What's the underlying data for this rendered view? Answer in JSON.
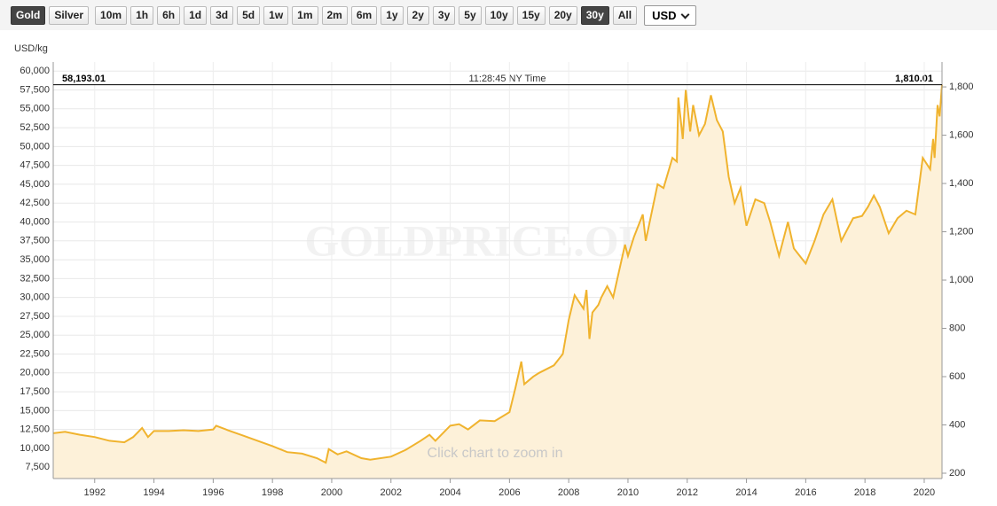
{
  "toolbar": {
    "buttons": [
      {
        "label": "Gold",
        "active": true
      },
      {
        "label": "Silver",
        "active": false
      },
      {
        "label": "10m",
        "active": false
      },
      {
        "label": "1h",
        "active": false
      },
      {
        "label": "6h",
        "active": false
      },
      {
        "label": "1d",
        "active": false
      },
      {
        "label": "3d",
        "active": false
      },
      {
        "label": "5d",
        "active": false
      },
      {
        "label": "1w",
        "active": false
      },
      {
        "label": "1m",
        "active": false
      },
      {
        "label": "2m",
        "active": false
      },
      {
        "label": "6m",
        "active": false
      },
      {
        "label": "1y",
        "active": false
      },
      {
        "label": "2y",
        "active": false
      },
      {
        "label": "3y",
        "active": false
      },
      {
        "label": "5y",
        "active": false
      },
      {
        "label": "10y",
        "active": false
      },
      {
        "label": "15y",
        "active": false
      },
      {
        "label": "20y",
        "active": false
      },
      {
        "label": "30y",
        "active": true
      },
      {
        "label": "All",
        "active": false
      }
    ],
    "currency": "USD"
  },
  "chart_data": {
    "type": "area",
    "ylabel": "USD/kg",
    "watermark": "GOLDPRICE.ORG",
    "hint": "Click chart to zoom in",
    "crosshair": {
      "value": {
        "value": 58193.01,
        "label": "58,193.01"
      },
      "value_y2": {
        "value": 1810.01,
        "label": "1,810.01"
      },
      "time": "11:28:45 NY Time"
    },
    "color": "#f0b32e",
    "fill": "#fdf1d9",
    "grid": true,
    "x": [
      1990.6,
      1991,
      1991.5,
      1992,
      1992.5,
      1993,
      1993.3,
      1993.6,
      1993.8,
      1994,
      1994.5,
      1995,
      1995.5,
      1996,
      1996.1,
      1996.5,
      1997,
      1997.5,
      1998,
      1998.5,
      1999,
      1999.5,
      1999.8,
      1999.9,
      2000.2,
      2000.5,
      2001,
      2001.3,
      2002,
      2002.5,
      2003,
      2003.3,
      2003.5,
      2004,
      2004.3,
      2004.6,
      2005,
      2005.5,
      2006,
      2006.2,
      2006.4,
      2006.5,
      2006.8,
      2007,
      2007.5,
      2007.8,
      2008,
      2008.2,
      2008.5,
      2008.6,
      2008.7,
      2008.8,
      2009,
      2009.1,
      2009.3,
      2009.5,
      2009.9,
      2010,
      2010.2,
      2010.5,
      2010.6,
      2011,
      2011.2,
      2011.5,
      2011.65,
      2011.7,
      2011.85,
      2011.95,
      2012.1,
      2012.2,
      2012.4,
      2012.6,
      2012.8,
      2013,
      2013.2,
      2013.4,
      2013.6,
      2013.8,
      2014,
      2014.3,
      2014.6,
      2014.8,
      2015.1,
      2015.4,
      2015.6,
      2016,
      2016.3,
      2016.6,
      2016.9,
      2017.2,
      2017.6,
      2017.9,
      2018.1,
      2018.3,
      2018.5,
      2018.8,
      2019.1,
      2019.4,
      2019.7,
      2019.95,
      2020.2,
      2020.3,
      2020.35,
      2020.45,
      2020.52,
      2020.6
    ],
    "values": [
      12000,
      12200,
      11800,
      11500,
      11000,
      10800,
      11500,
      12700,
      11500,
      12300,
      12300,
      12400,
      12300,
      12500,
      13000,
      12400,
      11700,
      11000,
      10300,
      9500,
      9300,
      8700,
      8100,
      9900,
      9200,
      9600,
      8700,
      8500,
      8900,
      9800,
      11000,
      11800,
      11000,
      13000,
      13200,
      12500,
      13700,
      13600,
      14800,
      18000,
      21500,
      18500,
      19500,
      20000,
      21000,
      22500,
      27000,
      30300,
      28500,
      31000,
      24500,
      28000,
      29000,
      30000,
      31500,
      30000,
      37000,
      35500,
      38000,
      41000,
      37500,
      45000,
      44500,
      48500,
      48000,
      56500,
      51000,
      57500,
      52000,
      55500,
      51500,
      53000,
      56800,
      53500,
      52000,
      46000,
      42500,
      44500,
      39500,
      43000,
      42500,
      40000,
      35500,
      40000,
      36500,
      34500,
      37500,
      41000,
      43000,
      37500,
      40500,
      40800,
      42000,
      43500,
      42000,
      38500,
      40500,
      41500,
      41000,
      48500,
      47000,
      51000,
      48500,
      55500,
      54000,
      58193.01
    ],
    "xlim": [
      1990.6,
      2020.6
    ],
    "xticks": [
      1992,
      1994,
      1996,
      1998,
      2000,
      2002,
      2004,
      2006,
      2008,
      2010,
      2012,
      2014,
      2016,
      2018,
      2020
    ],
    "ylim": [
      6000,
      61200
    ],
    "yticks": [
      {
        "value": 7500,
        "label": "7,500"
      },
      {
        "value": 10000,
        "label": "10,000"
      },
      {
        "value": 12500,
        "label": "12,500"
      },
      {
        "value": 15000,
        "label": "15,000"
      },
      {
        "value": 17500,
        "label": "17,500"
      },
      {
        "value": 20000,
        "label": "20,000"
      },
      {
        "value": 22500,
        "label": "22,500"
      },
      {
        "value": 25000,
        "label": "25,000"
      },
      {
        "value": 27500,
        "label": "27,500"
      },
      {
        "value": 30000,
        "label": "30,000"
      },
      {
        "value": 32500,
        "label": "32,500"
      },
      {
        "value": 35000,
        "label": "35,000"
      },
      {
        "value": 37500,
        "label": "37,500"
      },
      {
        "value": 40000,
        "label": "40,000"
      },
      {
        "value": 42500,
        "label": "42,500"
      },
      {
        "value": 45000,
        "label": "45,000"
      },
      {
        "value": 47500,
        "label": "47,500"
      },
      {
        "value": 50000,
        "label": "50,000"
      },
      {
        "value": 52500,
        "label": "52,500"
      },
      {
        "value": 55000,
        "label": "55,000"
      },
      {
        "value": 57500,
        "label": "57,500"
      },
      {
        "value": 60000,
        "label": "60,000"
      }
    ],
    "y2lim": [
      178,
      1903
    ],
    "y2ticks": [
      200,
      400,
      600,
      800,
      {
        "value": 1000,
        "label": "1,000"
      },
      {
        "value": 1200,
        "label": "1,200"
      },
      {
        "value": 1400,
        "label": "1,400"
      },
      {
        "value": 1600,
        "label": "1,600"
      },
      {
        "value": 1800,
        "label": "1,800"
      }
    ]
  }
}
